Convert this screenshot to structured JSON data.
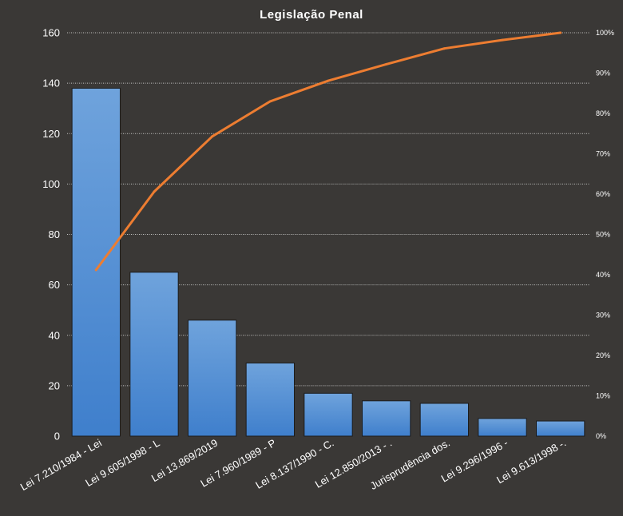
{
  "chart_data": {
    "type": "bar",
    "title": "Legislação Penal",
    "categories": [
      "Lei 7.210/1984 - Lei",
      "Lei 9.605/1998 - L",
      "Lei 13.869/2019",
      "Lei 7.960/1989 - P",
      "Lei 8.137/1990 - C.",
      "Lei 12.850/2013 - .",
      "Jurisprudência dos.",
      "Lei 9.296/1996 -",
      "Lei 9.613/1998 -."
    ],
    "series": [
      {
        "type": "bar",
        "axis": "left",
        "values": [
          138,
          65,
          46,
          29,
          17,
          14,
          13,
          7,
          6
        ]
      },
      {
        "type": "line",
        "axis": "right",
        "values": [
          41.2,
          60.6,
          74.3,
          83.0,
          88.1,
          92.2,
          96.1,
          98.2,
          100.0
        ]
      }
    ],
    "y_axis": {
      "min": 0,
      "max": 160,
      "ticks": [
        "0",
        "20",
        "40",
        "60",
        "80",
        "100",
        "120",
        "140",
        "160"
      ]
    },
    "y2_axis": {
      "min": 0,
      "max": 100,
      "ticks": [
        "0%",
        "10%",
        "20%",
        "30%",
        "40%",
        "50%",
        "60%",
        "70%",
        "80%",
        "90%",
        "100%"
      ]
    },
    "grid": true,
    "legend": "none",
    "colors": {
      "background": "#3a3836",
      "bar_top": "#6fa3dc",
      "bar_bottom": "#3f7fcc",
      "line": "#ed7d31",
      "text": "#ffffff"
    }
  }
}
